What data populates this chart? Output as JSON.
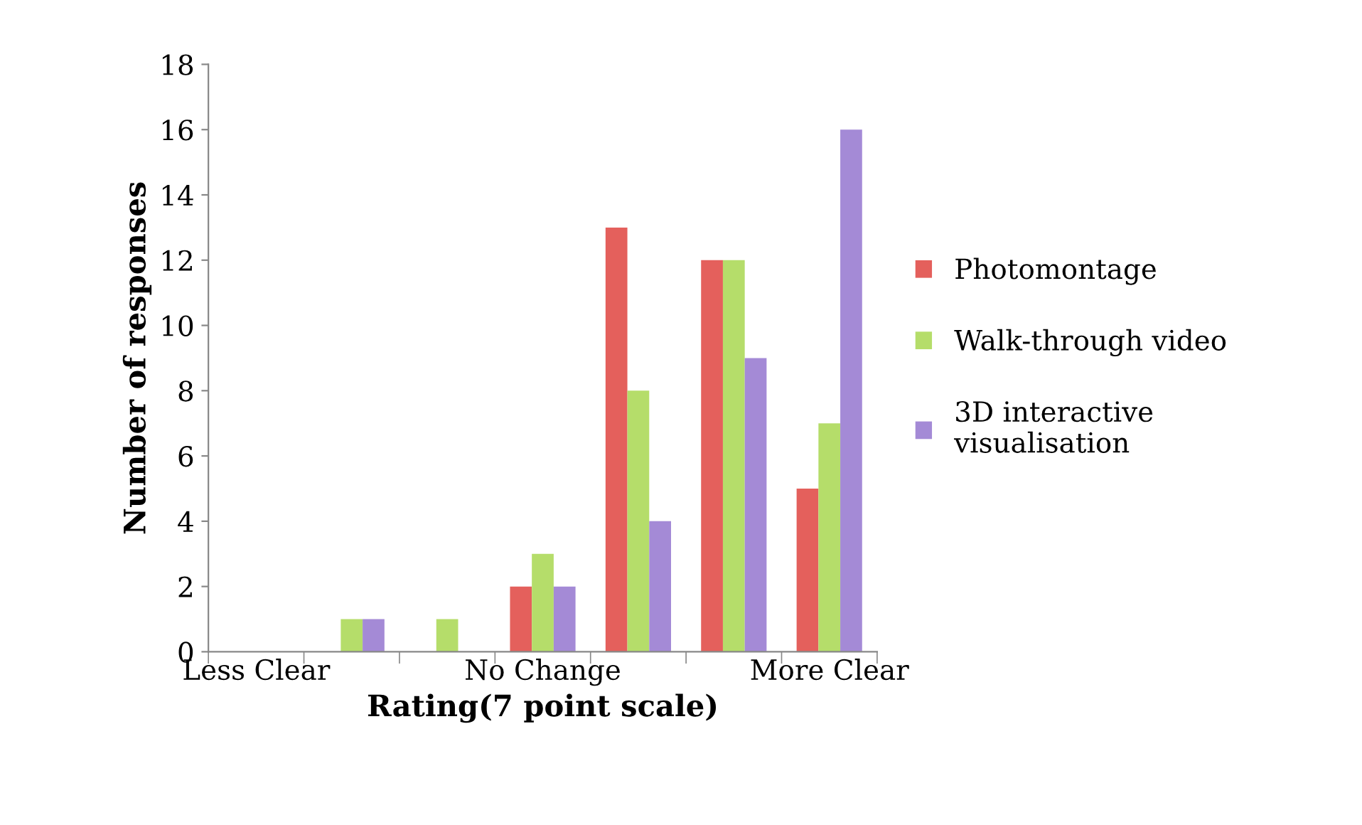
{
  "chart_data": {
    "type": "bar",
    "xlabel": "Rating(7 point scale)",
    "ylabel": "Number of responses",
    "categories": [
      "Less Clear",
      null,
      null,
      "No Change",
      null,
      null,
      "More Clear"
    ],
    "series": [
      {
        "name": "Photomontage",
        "color": "#e4605c",
        "values": [
          0,
          0,
          0,
          2,
          13,
          12,
          5
        ]
      },
      {
        "name": "Walk-through video",
        "color": "#b5dd6a",
        "values": [
          0,
          1,
          1,
          3,
          8,
          12,
          7
        ]
      },
      {
        "name": "3D interactive\nvisualisation",
        "color": "#a48ad6",
        "values": [
          0,
          1,
          0,
          2,
          4,
          9,
          16
        ]
      }
    ],
    "ylim": [
      0,
      18
    ],
    "yticks": [
      0,
      2,
      4,
      6,
      8,
      10,
      12,
      14,
      16,
      18
    ],
    "grid": false,
    "legend": "right"
  }
}
